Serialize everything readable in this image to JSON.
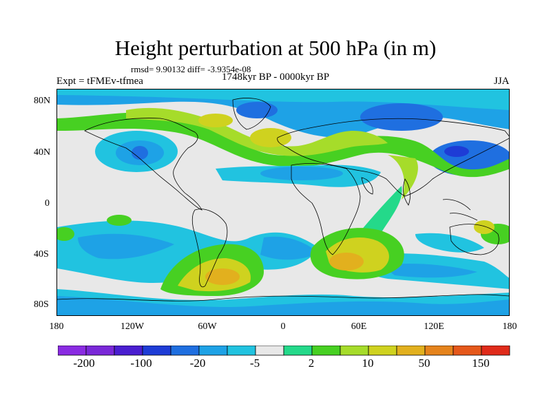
{
  "figure": {
    "title": "Height perturbation at 500 hPa (in m)",
    "stats": "rmsd= 9.90132 diff= -3.9354e-08",
    "left_label": "Expt = tFMEv-tfmea",
    "center_label": "1748kyr BP - 0000kyr BP",
    "right_label": "JJA"
  },
  "axes": {
    "x_ticks": [
      "180",
      "120W",
      "60W",
      "0",
      "60E",
      "120E",
      "180"
    ],
    "y_ticks": [
      "80N",
      "40N",
      "0",
      "40S",
      "80S"
    ]
  },
  "colorbar": {
    "colors": [
      "#8a2be2",
      "#7a28d8",
      "#4a1ed0",
      "#1e3cd6",
      "#1f6fe0",
      "#1ea2e6",
      "#21c3e0",
      "#e8e8e8",
      "#24d98a",
      "#47d022",
      "#a6dc2a",
      "#cfd21f",
      "#e2b01e",
      "#e5831c",
      "#e5581a",
      "#e02b1a"
    ],
    "labels": [
      "-200",
      "-100",
      "-20",
      "-5",
      "2",
      "10",
      "50",
      "150"
    ]
  }
}
